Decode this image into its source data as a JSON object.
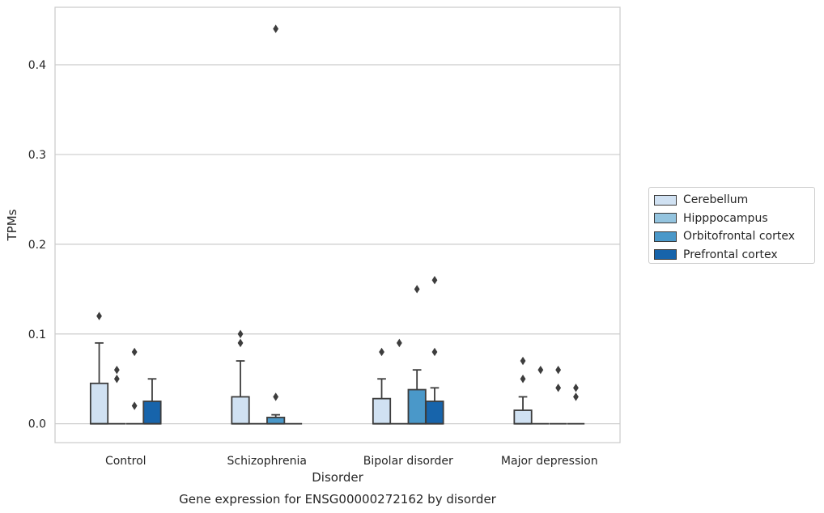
{
  "chart_data": {
    "type": "box",
    "title": "",
    "caption": "Gene expression for ENSG00000272162 by disorder",
    "xlabel": "Disorder",
    "ylabel": "TPMs",
    "ylim": [
      -0.021,
      0.464
    ],
    "yticks": [
      0.0,
      0.1,
      0.2,
      0.3,
      0.4
    ],
    "ytick_labels": [
      "0.0",
      "0.1",
      "0.2",
      "0.3",
      "0.4"
    ],
    "grid": "horizontal",
    "legend_position": "right",
    "categories": [
      "Control",
      "Schizophrenia",
      "Bipolar disorder",
      "Major depression"
    ],
    "series": [
      {
        "name": "Cerebellum",
        "color": "#d0e1f2",
        "boxes": [
          {
            "q1": 0.0,
            "median": 0.0,
            "q3": 0.045,
            "whisker_low": 0.0,
            "whisker_high": 0.09,
            "outliers": [
              0.12
            ]
          },
          {
            "q1": 0.0,
            "median": 0.0,
            "q3": 0.03,
            "whisker_low": 0.0,
            "whisker_high": 0.07,
            "outliers": [
              0.09,
              0.1
            ]
          },
          {
            "q1": 0.0,
            "median": 0.0,
            "q3": 0.028,
            "whisker_low": 0.0,
            "whisker_high": 0.05,
            "outliers": [
              0.08
            ]
          },
          {
            "q1": 0.0,
            "median": 0.0,
            "q3": 0.015,
            "whisker_low": 0.0,
            "whisker_high": 0.03,
            "outliers": [
              0.05,
              0.07
            ]
          }
        ]
      },
      {
        "name": "Hipppocampus",
        "color": "#94c4df",
        "boxes": [
          {
            "q1": 0.0,
            "median": 0.0,
            "q3": 0.0,
            "whisker_low": 0.0,
            "whisker_high": 0.0,
            "outliers": [
              0.05,
              0.06
            ]
          },
          {
            "q1": 0.0,
            "median": 0.0,
            "q3": 0.0,
            "whisker_low": 0.0,
            "whisker_high": 0.0,
            "outliers": []
          },
          {
            "q1": 0.0,
            "median": 0.0,
            "q3": 0.0,
            "whisker_low": 0.0,
            "whisker_high": 0.0,
            "outliers": [
              0.09
            ]
          },
          {
            "q1": 0.0,
            "median": 0.0,
            "q3": 0.0,
            "whisker_low": 0.0,
            "whisker_high": 0.0,
            "outliers": [
              0.06
            ]
          }
        ]
      },
      {
        "name": "Orbitofrontal cortex",
        "color": "#4a98c9",
        "boxes": [
          {
            "q1": 0.0,
            "median": 0.0,
            "q3": 0.0,
            "whisker_low": 0.0,
            "whisker_high": 0.0,
            "outliers": [
              0.02,
              0.08
            ]
          },
          {
            "q1": 0.0,
            "median": 0.0,
            "q3": 0.007,
            "whisker_low": 0.0,
            "whisker_high": 0.01,
            "outliers": [
              0.03,
              0.44
            ]
          },
          {
            "q1": 0.0,
            "median": 0.0,
            "q3": 0.038,
            "whisker_low": 0.0,
            "whisker_high": 0.06,
            "outliers": [
              0.15
            ]
          },
          {
            "q1": 0.0,
            "median": 0.0,
            "q3": 0.0,
            "whisker_low": 0.0,
            "whisker_high": 0.0,
            "outliers": [
              0.04,
              0.06
            ]
          }
        ]
      },
      {
        "name": "Prefrontal cortex",
        "color": "#1764ab",
        "boxes": [
          {
            "q1": 0.0,
            "median": 0.0,
            "q3": 0.025,
            "whisker_low": 0.0,
            "whisker_high": 0.05,
            "outliers": []
          },
          {
            "q1": 0.0,
            "median": 0.0,
            "q3": 0.0,
            "whisker_low": 0.0,
            "whisker_high": 0.0,
            "outliers": []
          },
          {
            "q1": 0.0,
            "median": 0.0,
            "q3": 0.025,
            "whisker_low": 0.0,
            "whisker_high": 0.04,
            "outliers": [
              0.08,
              0.16
            ]
          },
          {
            "q1": 0.0,
            "median": 0.0,
            "q3": 0.0,
            "whisker_low": 0.0,
            "whisker_high": 0.0,
            "outliers": [
              0.03,
              0.04
            ]
          }
        ]
      }
    ]
  }
}
